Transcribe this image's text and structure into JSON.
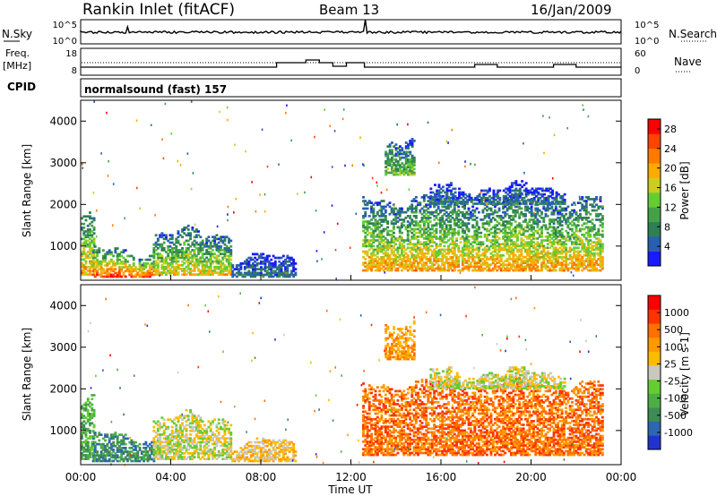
{
  "header": {
    "station": "Rankin Inlet (fitACF)",
    "beam": "Beam 13",
    "date": "16/Jan/2009"
  },
  "noise_panel": {
    "left_label": "N.Sky",
    "right_label": "N.Search",
    "ticks": [
      "10^5",
      "10^0"
    ]
  },
  "freq_panel": {
    "left_label_top": "Freq.",
    "left_label_bottom": "[MHz]",
    "left_ticks": [
      "18",
      "8"
    ],
    "right_label": "Nave",
    "right_ticks": [
      "60",
      "0"
    ]
  },
  "cpid": {
    "label": "CPID",
    "value": "normalsound (fast) 157"
  },
  "colors": {
    "power": [
      "#1a1aff",
      "#2a5fb0",
      "#2e7f55",
      "#46a04a",
      "#66cc33",
      "#cccc22",
      "#ffaa00",
      "#ff7a00",
      "#ff4400",
      "#ff0000"
    ],
    "velocity": [
      "#2233cc",
      "#2f66b0",
      "#3f8a55",
      "#4caf45",
      "#66cc33",
      "#c8c8c0",
      "#ffbb00",
      "#ff9a00",
      "#ff7000",
      "#ff3300",
      "#ff0000"
    ]
  },
  "chart_data": [
    {
      "type": "heatmap",
      "quantity": "power",
      "ylabel": "Slant Range [km]",
      "yticks": [
        "4000",
        "3000",
        "2000",
        "1000"
      ],
      "ylim": [
        180,
        4500
      ],
      "colorbar_label": "Power [dB]",
      "colorbar_ticks": [
        "28",
        "24",
        "20",
        "16",
        "12",
        "8",
        "4"
      ],
      "colorbar_range": [
        0,
        30
      ],
      "bands": [
        {
          "t0": 0.0,
          "t1": 0.6,
          "r0": 300,
          "r1": 1700,
          "level": 18
        },
        {
          "t0": 0.5,
          "t1": 3.2,
          "r0": 250,
          "r1": 850,
          "level": 22
        },
        {
          "t0": 3.2,
          "t1": 6.7,
          "r0": 300,
          "r1": 1300,
          "level": 16
        },
        {
          "t0": 6.7,
          "t1": 9.5,
          "r0": 250,
          "r1": 700,
          "level": 6
        },
        {
          "t0": 12.5,
          "t1": 23.2,
          "r0": 400,
          "r1": 2100,
          "level": 18
        },
        {
          "t0": 13.5,
          "t1": 14.8,
          "r0": 2700,
          "r1": 3600,
          "level": 12
        },
        {
          "t0": 15.5,
          "t1": 21.5,
          "r0": 2000,
          "r1": 2400,
          "level": 6
        }
      ]
    },
    {
      "type": "heatmap",
      "quantity": "velocity",
      "ylabel": "Slant Range [km]",
      "yticks": [
        "4000",
        "3000",
        "2000",
        "1000"
      ],
      "ylim": [
        180,
        4500
      ],
      "colorbar_label": "Velocity [m s-1]",
      "colorbar_ticks": [
        "1000",
        "500",
        "100",
        "25",
        "-25",
        "-100",
        "-500",
        "-1000"
      ],
      "bands": [
        {
          "t0": 0.0,
          "t1": 0.6,
          "r0": 300,
          "r1": 1700,
          "cls": 3
        },
        {
          "t0": 0.5,
          "t1": 3.2,
          "r0": 250,
          "r1": 850,
          "cls": 2
        },
        {
          "t0": 3.2,
          "t1": 6.7,
          "r0": 300,
          "r1": 1300,
          "cls": 5
        },
        {
          "t0": 6.7,
          "t1": 9.5,
          "r0": 250,
          "r1": 700,
          "cls": 6
        },
        {
          "t0": 12.5,
          "t1": 23.2,
          "r0": 400,
          "r1": 2100,
          "cls": 8
        },
        {
          "t0": 13.5,
          "t1": 14.8,
          "r0": 2700,
          "r1": 3600,
          "cls": 7
        },
        {
          "t0": 15.5,
          "t1": 21.5,
          "r0": 2000,
          "r1": 2400,
          "cls": 5
        }
      ]
    }
  ],
  "xaxis": {
    "xlabel": "Time UT",
    "xlim": [
      0,
      24
    ],
    "xticks": [
      "00:00",
      "04:00",
      "08:00",
      "12:00",
      "16:00",
      "20:00",
      "00:00"
    ]
  }
}
